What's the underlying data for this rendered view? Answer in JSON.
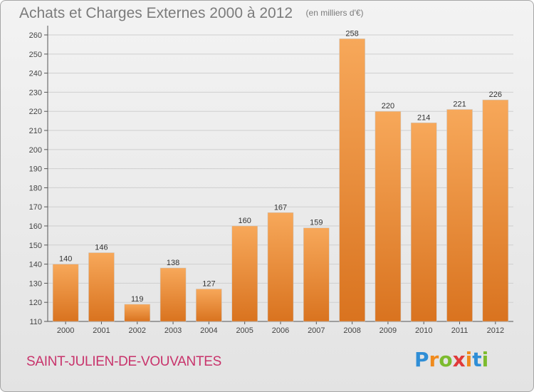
{
  "title": "Achats et Charges Externes 2000 à 2012",
  "subtitle": "(en milliers d'€)",
  "commune": "SAINT-JULIEN-DE-VOUVANTES",
  "logo": {
    "letters": [
      "P",
      "r",
      "o",
      "x",
      "i",
      "t",
      "i"
    ],
    "colors": [
      "#2f8ed6",
      "#f08a1c",
      "#7cbb2e",
      "#e03a3a",
      "#f08a1c",
      "#2f8ed6",
      "#7cbb2e"
    ]
  },
  "colors": {
    "bar_light": "#f7a85a",
    "bar_dark": "#d9731f",
    "title": "#7b7b7b",
    "commune": "#c8336b"
  },
  "chart_data": {
    "type": "bar",
    "categories": [
      "2000",
      "2001",
      "2002",
      "2003",
      "2004",
      "2005",
      "2006",
      "2007",
      "2008",
      "2009",
      "2010",
      "2011",
      "2012"
    ],
    "values": [
      140,
      146,
      119,
      138,
      127,
      160,
      167,
      159,
      258,
      220,
      214,
      221,
      226
    ],
    "data_labels": [
      "140",
      "146",
      "119",
      "138",
      "127",
      "160",
      "167",
      "159",
      "258",
      "220",
      "214",
      "221",
      "226"
    ],
    "yticks": [
      110,
      120,
      130,
      140,
      150,
      160,
      170,
      180,
      190,
      200,
      210,
      220,
      230,
      240,
      250,
      260
    ],
    "ylim": [
      110,
      263
    ],
    "grid": true,
    "title": "Achats et Charges Externes 2000 à 2012",
    "xlabel": "",
    "ylabel": ""
  }
}
